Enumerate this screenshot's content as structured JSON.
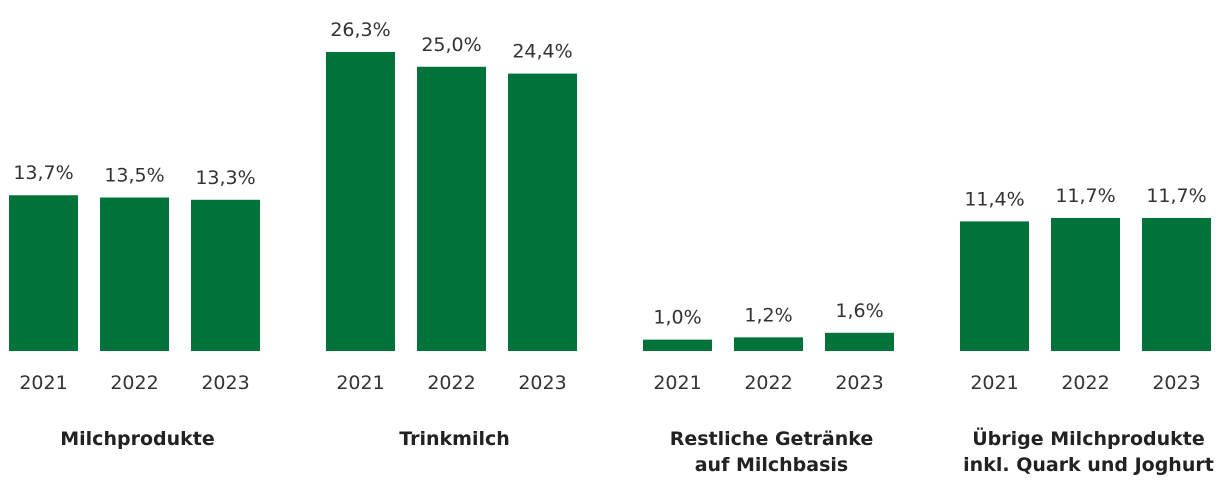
{
  "chart_data": {
    "type": "bar",
    "categories": [
      "Milchprodukte",
      "Trinkmilch",
      "Restliche Getränke\nauf Milchbasis",
      "Übrige Milchprodukte\ninkl. Quark und Joghurt"
    ],
    "series": [
      {
        "name": "2021",
        "color": "#00733a",
        "values": [
          13.7,
          26.3,
          1.0,
          11.4
        ],
        "value_labels": [
          "13,7%",
          "26,3%",
          "1,0%",
          "11,4%"
        ]
      },
      {
        "name": "2022",
        "color": "#00733a",
        "values": [
          13.5,
          25.0,
          1.2,
          11.7
        ],
        "value_labels": [
          "13,5%",
          "25,0%",
          "1,2%",
          "11,7%"
        ]
      },
      {
        "name": "2023",
        "color": "#00733a",
        "values": [
          13.3,
          24.4,
          1.6,
          11.7
        ],
        "value_labels": [
          "13,3%",
          "24,4%",
          "1,6%",
          "11,7%"
        ]
      }
    ]
  }
}
